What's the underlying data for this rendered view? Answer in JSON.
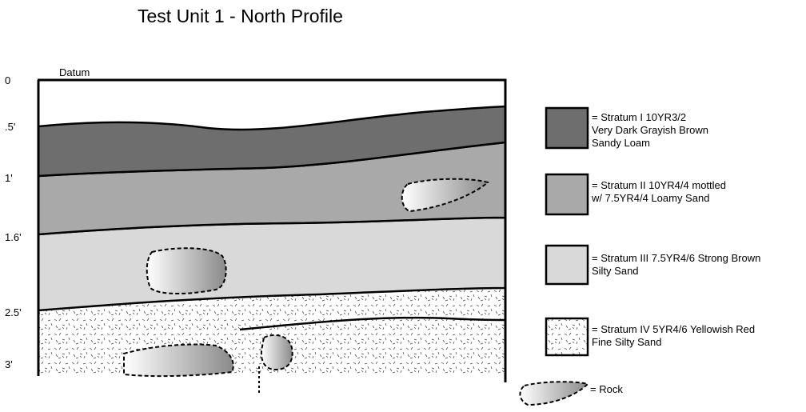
{
  "title": "Test Unit 1 - North Profile",
  "datum": "Datum",
  "depth_labels": [
    "0",
    ".5'",
    "1'",
    "1.6'",
    "2.5'",
    "3'"
  ],
  "legend": [
    {
      "lines": [
        "= Stratum I 10YR3/2",
        "Very Dark Grayish Brown",
        "Sandy Loam"
      ]
    },
    {
      "lines": [
        "= Stratum II 10YR4/4 mottled",
        "w/ 7.5YR4/4 Loamy Sand"
      ]
    },
    {
      "lines": [
        "= Stratum III 7.5YR4/6 Strong Brown",
        "Silty Sand"
      ]
    },
    {
      "lines": [
        "= Stratum IV 5YR4/6 Yellowish Red",
        "Fine Silty Sand"
      ]
    }
  ],
  "rock": "= Rock"
}
